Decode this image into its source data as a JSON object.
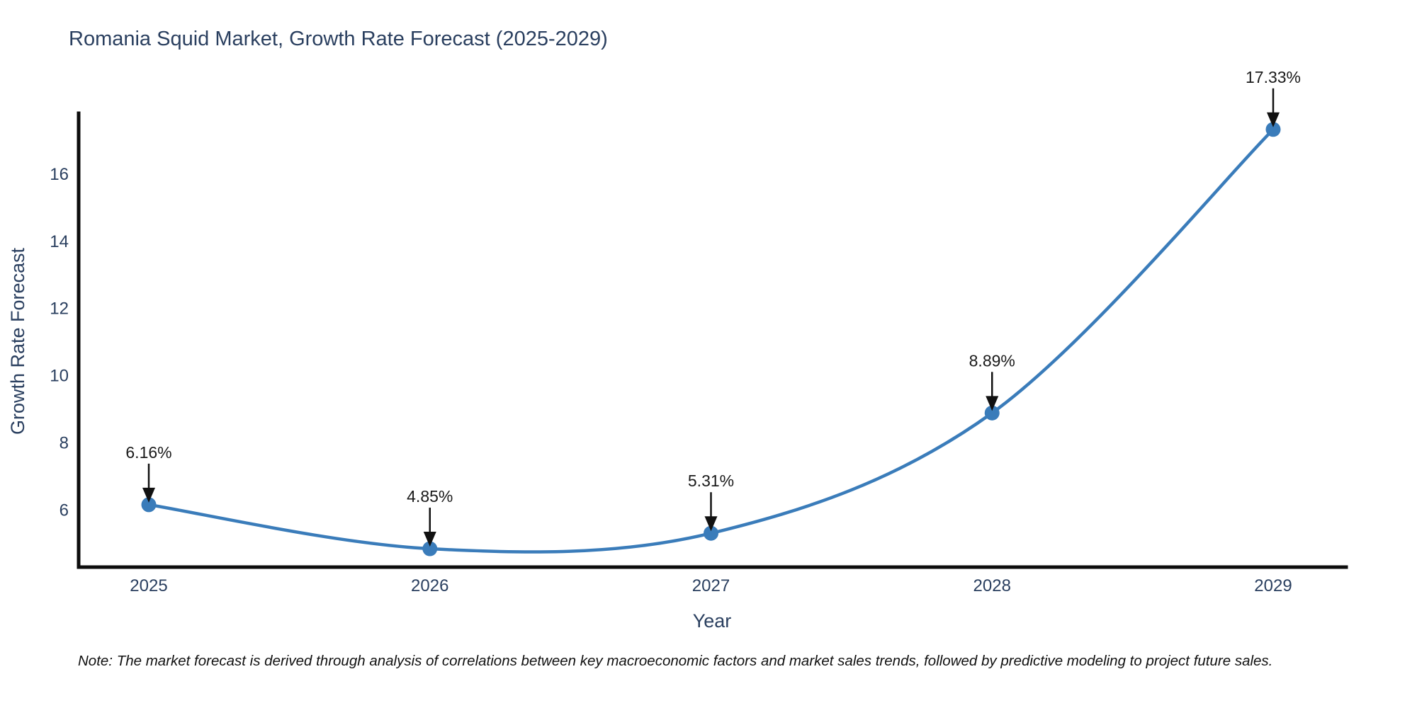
{
  "title": "Romania Squid Market, Growth Rate Forecast (2025-2029)",
  "note": "Note: The market forecast is derived through analysis of correlations between key macroeconomic factors and market sales trends, followed by predictive modeling to project future sales.",
  "colors": {
    "line": "#3a7cba",
    "marker": "#3a7cba",
    "axis_line": "#0d0d0d",
    "arrow": "#111111",
    "title_text": "#2a3f5f",
    "tick_text": "#2a3f5f",
    "annotation_text": "#1a1a1a"
  },
  "chart_data": {
    "type": "line",
    "title": "Romania Squid Market, Growth Rate Forecast (2025-2029)",
    "xlabel": "Year",
    "ylabel": "Growth Rate Forecast",
    "categories": [
      "2025",
      "2026",
      "2027",
      "2028",
      "2029"
    ],
    "values": [
      6.16,
      4.85,
      5.31,
      8.89,
      17.33
    ],
    "point_labels": [
      "6.16%",
      "4.85%",
      "5.31%",
      "8.89%",
      "17.33%"
    ],
    "series": [
      {
        "name": "Growth Rate Forecast",
        "values": [
          6.16,
          4.85,
          5.31,
          8.89,
          17.33
        ]
      }
    ],
    "yticks": [
      6,
      8,
      10,
      12,
      14,
      16
    ],
    "ylim": [
      4.303,
      17.81
    ],
    "grid": false,
    "legend": "none",
    "line_shape": "spline",
    "markers": true
  }
}
